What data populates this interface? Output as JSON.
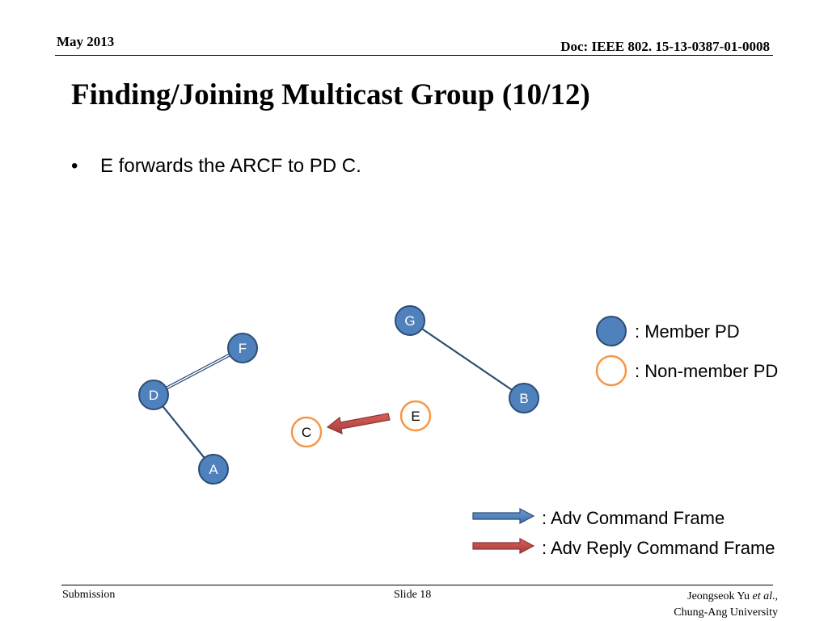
{
  "header": {
    "date": "May 2013",
    "doc": "Doc: IEEE 802. 15-13-0387-01-0008"
  },
  "slide": {
    "title": "Finding/Joining Multicast Group (10/12)",
    "bullet_marker": "•",
    "bullet": "E forwards the ARCF to PD C."
  },
  "diagram": {
    "nodes": {
      "F": "F",
      "D": "D",
      "A": "A",
      "G": "G",
      "B": "B",
      "E": "E",
      "C": "C"
    },
    "legend": {
      "member": ": Member PD",
      "non_member": ": Non-member PD",
      "adv": ": Adv Command Frame",
      "adv_reply": ": Adv Reply Command Frame"
    },
    "colors": {
      "member_fill": "#4f81bd",
      "member_stroke": "#2c4d75",
      "non_member_stroke": "#f79646",
      "link": "#2c4d75",
      "adv_arrow": "#4f81bd",
      "reply_arrow": "#c0504d"
    }
  },
  "footer": {
    "left": "Submission",
    "center": "Slide 18",
    "right_author": "Jeongseok Yu",
    "right_etal": "et al",
    "right_tail": ".,",
    "right_org": "Chung-Ang University"
  }
}
